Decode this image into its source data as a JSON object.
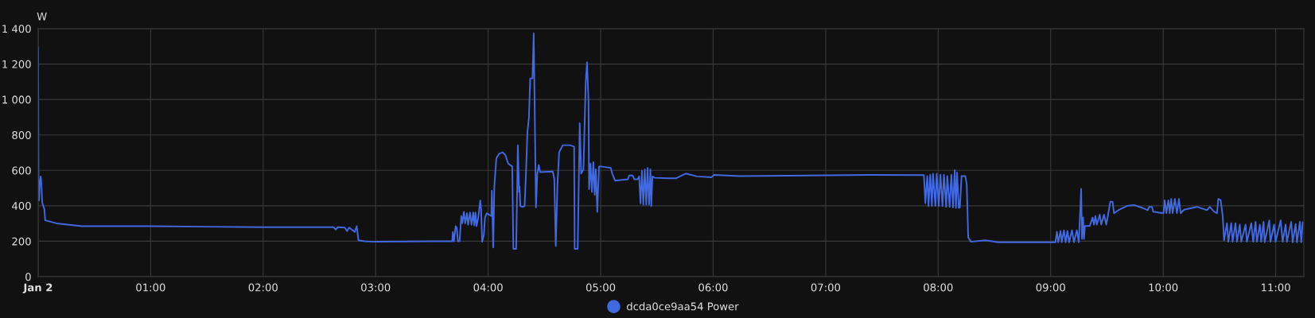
{
  "chart_data": {
    "type": "line",
    "ylabel": "W",
    "xlim": [
      0,
      11.25
    ],
    "ylim": [
      0,
      1400
    ],
    "xticks": [
      {
        "value": 0,
        "label": "Jan 2"
      },
      {
        "value": 1,
        "label": "01:00"
      },
      {
        "value": 2,
        "label": "02:00"
      },
      {
        "value": 3,
        "label": "03:00"
      },
      {
        "value": 4,
        "label": "04:00"
      },
      {
        "value": 5,
        "label": "05:00"
      },
      {
        "value": 6,
        "label": "06:00"
      },
      {
        "value": 7,
        "label": "07:00"
      },
      {
        "value": 8,
        "label": "08:00"
      },
      {
        "value": 9,
        "label": "09:00"
      },
      {
        "value": 10,
        "label": "10:00"
      },
      {
        "value": 11,
        "label": "11:00"
      }
    ],
    "yticks": [
      0,
      200,
      400,
      600,
      800,
      {
        "value": 1000,
        "label": "1 000"
      },
      {
        "value": 1200,
        "label": "1 200"
      },
      {
        "value": 1400,
        "label": "1 400"
      }
    ],
    "grid": true,
    "legend": "bottom",
    "marker": "none",
    "line_style": "solid",
    "series": [
      {
        "name": "dcda0ce9aa54 Power",
        "color": "#4169e1",
        "x": [
          0,
          0.003,
          0.008,
          0.015,
          0.023,
          0.03,
          0.035,
          0.038,
          0.055,
          0.063,
          0.163,
          0.389,
          1.0,
          1.992,
          2.626,
          2.646,
          2.663,
          2.726,
          2.746,
          2.764,
          2.814,
          2.832,
          2.847,
          2.902,
          2.992,
          3.47,
          3.681,
          3.686,
          3.696,
          3.711,
          3.721,
          3.731,
          3.746,
          3.761,
          3.771,
          3.784,
          3.796,
          3.812,
          3.822,
          3.839,
          3.852,
          3.867,
          3.877,
          3.887,
          3.897,
          3.912,
          3.93,
          3.937,
          3.947,
          3.962,
          3.972,
          3.987,
          4.028,
          4.033,
          4.045,
          4.055,
          4.073,
          4.098,
          4.128,
          4.153,
          4.178,
          4.214,
          4.224,
          4.249,
          4.264,
          4.274,
          4.279,
          4.286,
          4.307,
          4.324,
          4.337,
          4.349,
          4.362,
          4.374,
          4.394,
          4.405,
          4.425,
          4.437,
          4.45,
          4.462,
          4.575,
          4.588,
          4.601,
          4.616,
          4.631,
          4.663,
          4.726,
          4.764,
          4.769,
          4.796,
          4.814,
          4.827,
          4.847,
          4.867,
          4.879,
          4.892,
          4.897,
          4.91,
          4.922,
          4.935,
          4.947,
          4.957,
          4.97,
          4.985,
          5.003,
          5.09,
          5.103,
          5.128,
          5.241,
          5.254,
          5.284,
          5.299,
          5.329,
          5.342,
          5.354,
          5.367,
          5.379,
          5.392,
          5.405,
          5.417,
          5.43,
          5.442,
          5.45,
          5.46,
          5.48,
          5.606,
          5.668,
          5.756,
          5.857,
          5.982,
          6.008,
          6.234,
          7.39,
          7.873,
          7.886,
          7.903,
          7.914,
          7.929,
          7.944,
          7.954,
          7.975,
          7.987,
          8.005,
          8.02,
          8.038,
          8.051,
          8.071,
          8.081,
          8.102,
          8.117,
          8.132,
          8.147,
          8.158,
          8.168,
          8.183,
          8.193,
          8.208,
          8.241,
          8.254,
          8.267,
          8.292,
          8.419,
          8.534,
          9.042,
          9.055,
          9.067,
          9.088,
          9.098,
          9.118,
          9.133,
          9.149,
          9.164,
          9.189,
          9.207,
          9.232,
          9.25,
          9.258,
          9.271,
          9.278,
          9.288,
          9.296,
          9.304,
          9.347,
          9.372,
          9.385,
          9.398,
          9.41,
          9.436,
          9.449,
          9.474,
          9.494,
          9.512,
          9.53,
          9.55,
          9.563,
          9.601,
          9.677,
          9.741,
          9.817,
          9.863,
          9.875,
          9.901,
          9.911,
          9.957,
          10.003,
          10.013,
          10.028,
          10.046,
          10.058,
          10.071,
          10.084,
          10.104,
          10.122,
          10.14,
          10.155,
          10.186,
          10.3,
          10.389,
          10.414,
          10.452,
          10.478,
          10.49,
          10.511,
          10.529,
          10.541,
          10.567,
          10.579,
          10.605,
          10.617,
          10.643,
          10.656,
          10.681,
          10.694,
          10.732,
          10.744,
          10.783,
          10.8,
          10.821,
          10.833,
          10.859,
          10.871,
          10.892,
          10.902,
          10.943,
          10.953,
          10.986,
          10.999,
          11.044,
          11.062,
          11.088,
          11.1,
          11.138,
          11.151,
          11.177,
          11.189,
          11.215,
          11.227,
          11.24
        ],
        "values": [
          1291,
          574,
          430,
          526,
          566,
          510,
          430,
          414,
          382,
          318,
          301,
          285,
          285,
          279,
          279,
          266,
          279,
          277,
          257,
          277,
          253,
          285,
          205,
          200,
          197,
          200,
          200,
          253,
          200,
          285,
          277,
          200,
          200,
          342,
          301,
          366,
          301,
          358,
          293,
          362,
          293,
          362,
          289,
          362,
          285,
          334,
          430,
          382,
          197,
          237,
          334,
          358,
          342,
          486,
          165,
          510,
          670,
          694,
          702,
          686,
          638,
          622,
          157,
          157,
          742,
          478,
          510,
          398,
          394,
          398,
          598,
          815,
          895,
          1119,
          1119,
          1373,
          390,
          582,
          630,
          590,
          593,
          550,
          173,
          518,
          702,
          742,
          742,
          734,
          157,
          157,
          866,
          582,
          606,
          1095,
          1211,
          991,
          494,
          638,
          478,
          646,
          462,
          606,
          366,
          622,
          622,
          614,
          582,
          542,
          550,
          571,
          571,
          550,
          550,
          566,
          414,
          598,
          406,
          606,
          406,
          614,
          406,
          606,
          398,
          566,
          558,
          555,
          555,
          582,
          566,
          561,
          574,
          568,
          574,
          573,
          415,
          568,
          399,
          576,
          399,
          581,
          399,
          581,
          399,
          576,
          399,
          576,
          394,
          568,
          394,
          576,
          391,
          601,
          388,
          588,
          388,
          391,
          568,
          568,
          520,
          221,
          197,
          205,
          194,
          194,
          254,
          194,
          258,
          194,
          262,
          194,
          258,
          194,
          262,
          194,
          262,
          194,
          310,
          496,
          213,
          334,
          213,
          286,
          286,
          334,
          294,
          342,
          294,
          350,
          294,
          350,
          294,
          358,
          423,
          423,
          358,
          375,
          399,
          404,
          388,
          375,
          394,
          394,
          367,
          362,
          358,
          431,
          358,
          431,
          358,
          439,
          358,
          439,
          358,
          439,
          358,
          378,
          394,
          375,
          394,
          367,
          358,
          439,
          431,
          342,
          205,
          302,
          197,
          302,
          197,
          302,
          197,
          294,
          197,
          294,
          197,
          302,
          197,
          310,
          197,
          294,
          197,
          310,
          194,
          318,
          197,
          294,
          197,
          318,
          197,
          294,
          197,
          310,
          194,
          297,
          194,
          310,
          194,
          307
        ]
      }
    ]
  }
}
